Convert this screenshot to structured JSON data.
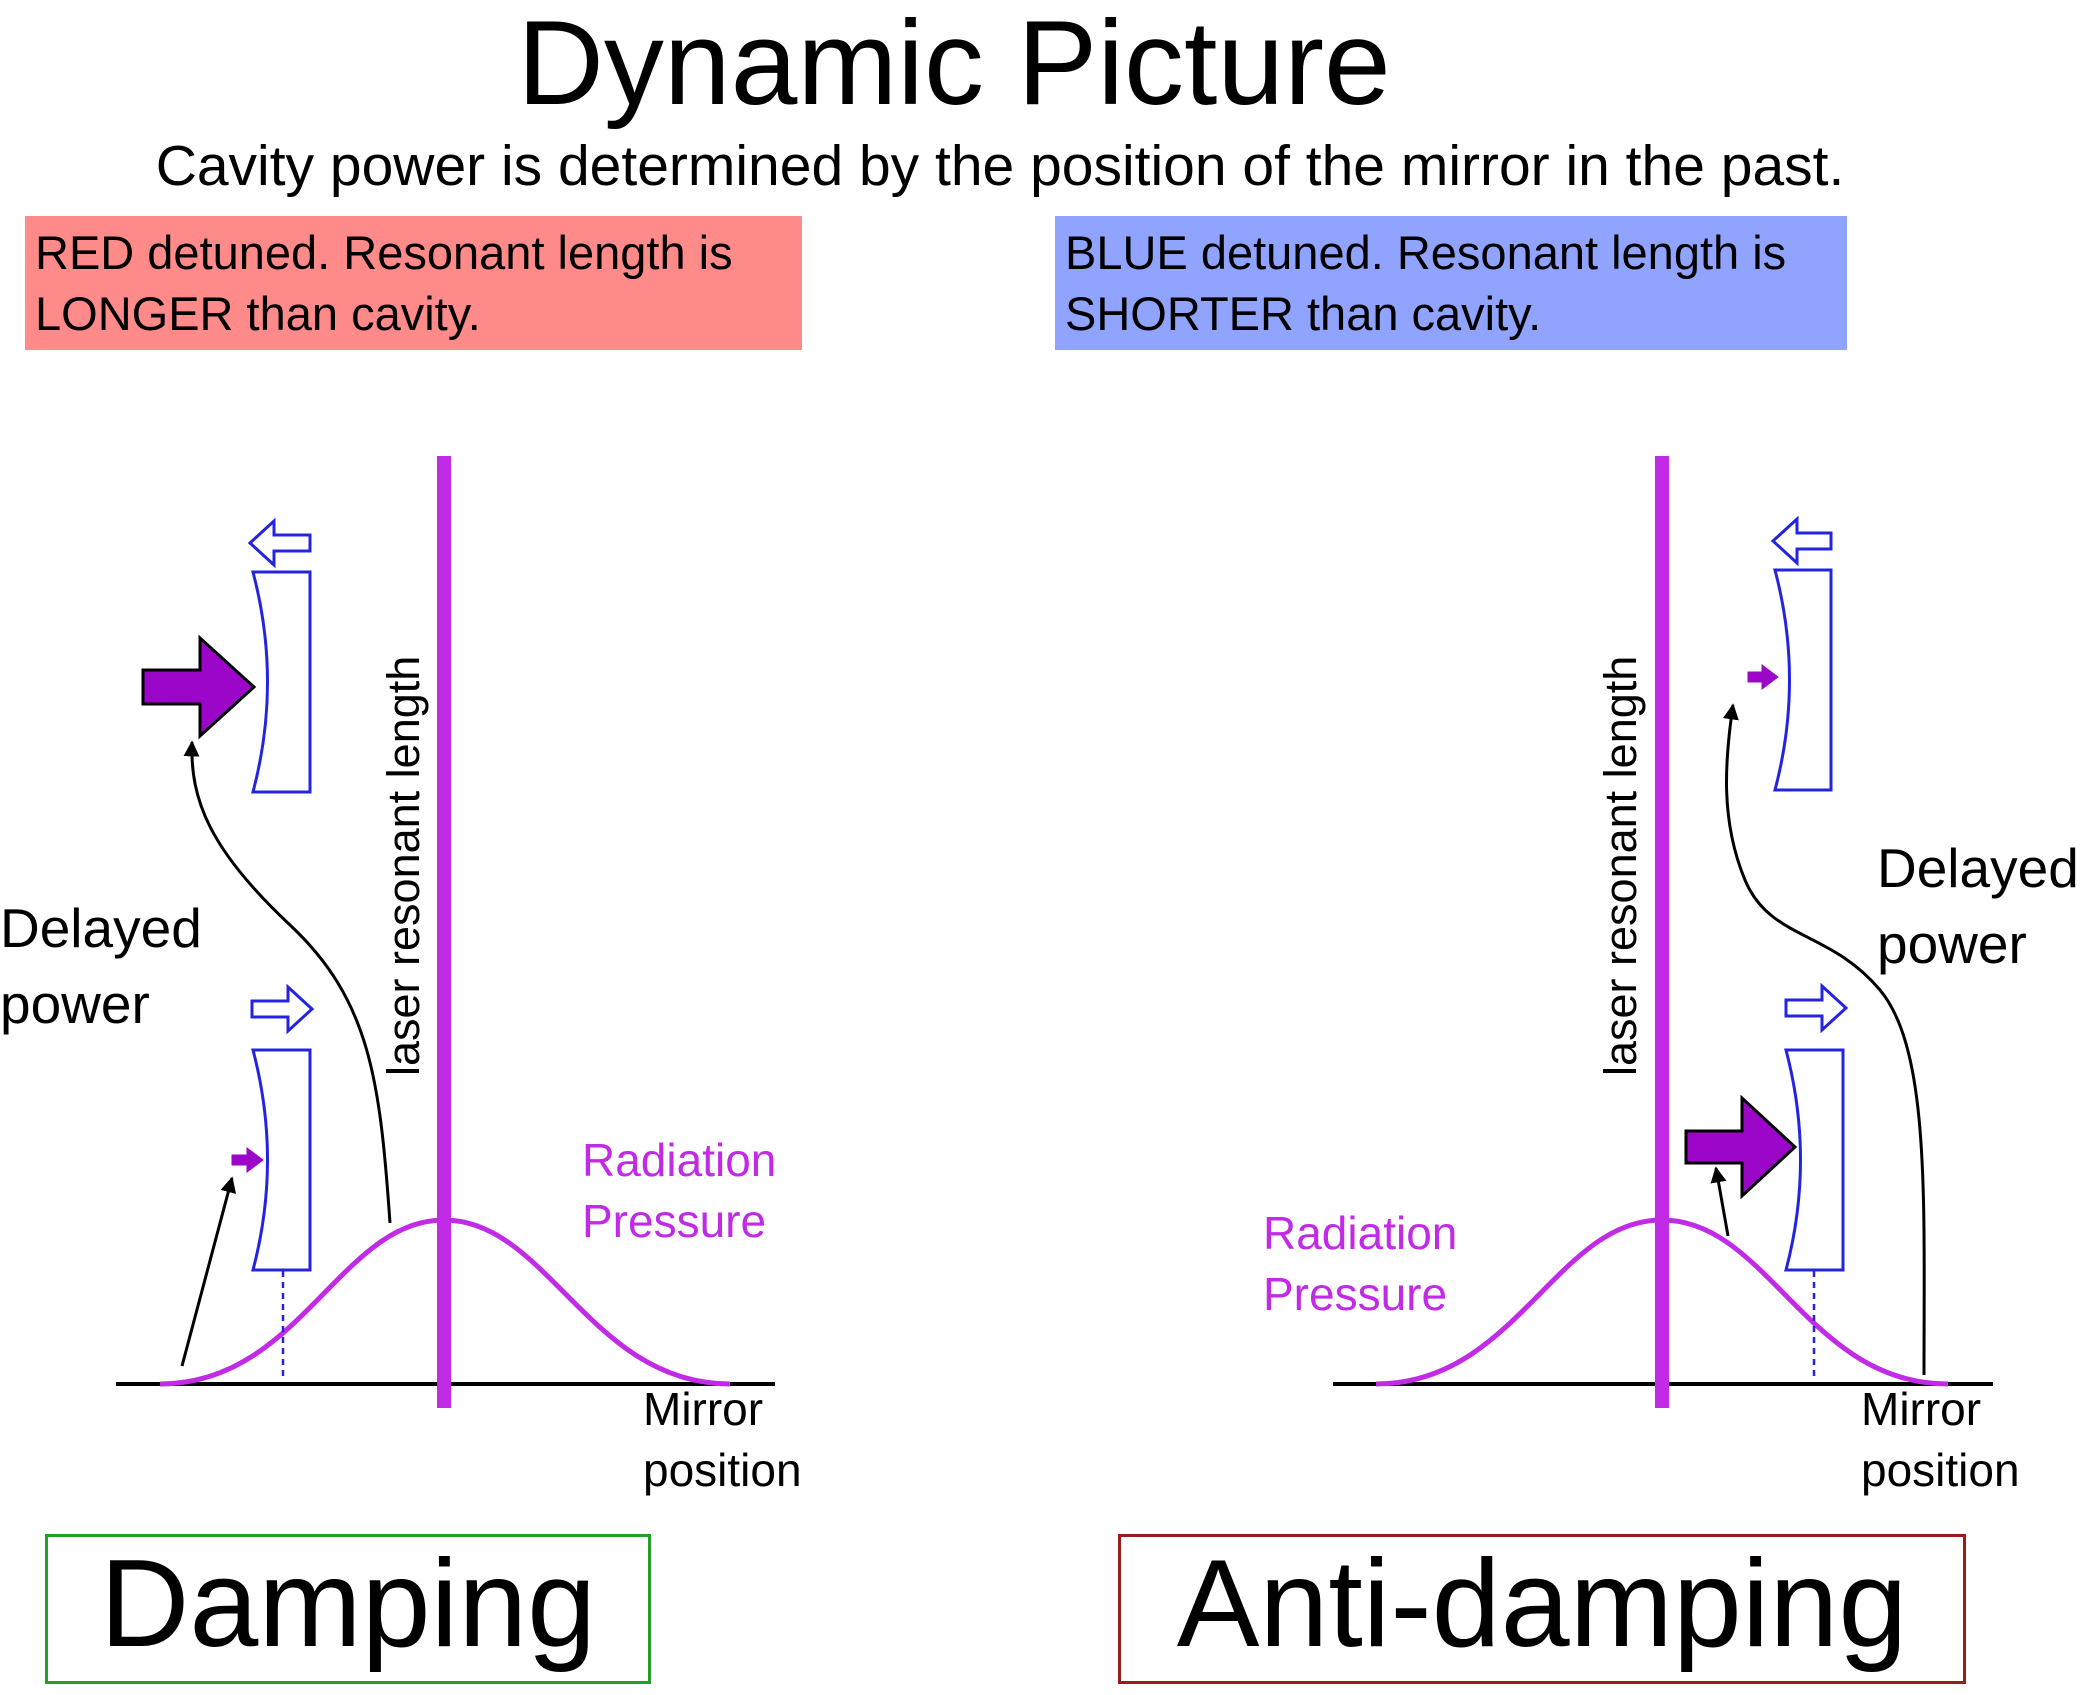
{
  "title": "Dynamic Picture",
  "subtitle": "Cavity power is determined by the position of the mirror in the past.",
  "colors": {
    "red_box": "#ff8a8a",
    "blue_box": "#8fa3ff",
    "magenta": "#c12be6",
    "arrow_fill": "#9b06c9",
    "mirror_blue": "#2424e0",
    "damping_border": "#22a023",
    "anti_damping_border": "#9b1c1c"
  },
  "left_panel": {
    "detune_line1": "RED detuned.  Resonant length is",
    "detune_line2": "LONGER than cavity.",
    "resonant_label": "laser resonant length",
    "delayed_line1": "Delayed",
    "delayed_line2": "power",
    "radiation_line1": "Radiation",
    "radiation_line2": "Pressure",
    "axis_line1": "Mirror",
    "axis_line2": "position",
    "result": "Damping"
  },
  "right_panel": {
    "detune_line1": "BLUE detuned.  Resonant length is",
    "detune_line2": "SHORTER than cavity.",
    "resonant_label": "laser resonant length",
    "delayed_line1": "Delayed",
    "delayed_line2": "power",
    "radiation_line1": "Radiation",
    "radiation_line2": "Pressure",
    "axis_line1": "Mirror",
    "axis_line2": "position",
    "result": "Anti-damping"
  },
  "icons": [
    "mirror-icon",
    "hollow-arrow-left-icon",
    "hollow-arrow-right-icon",
    "force-arrow-icon"
  ]
}
